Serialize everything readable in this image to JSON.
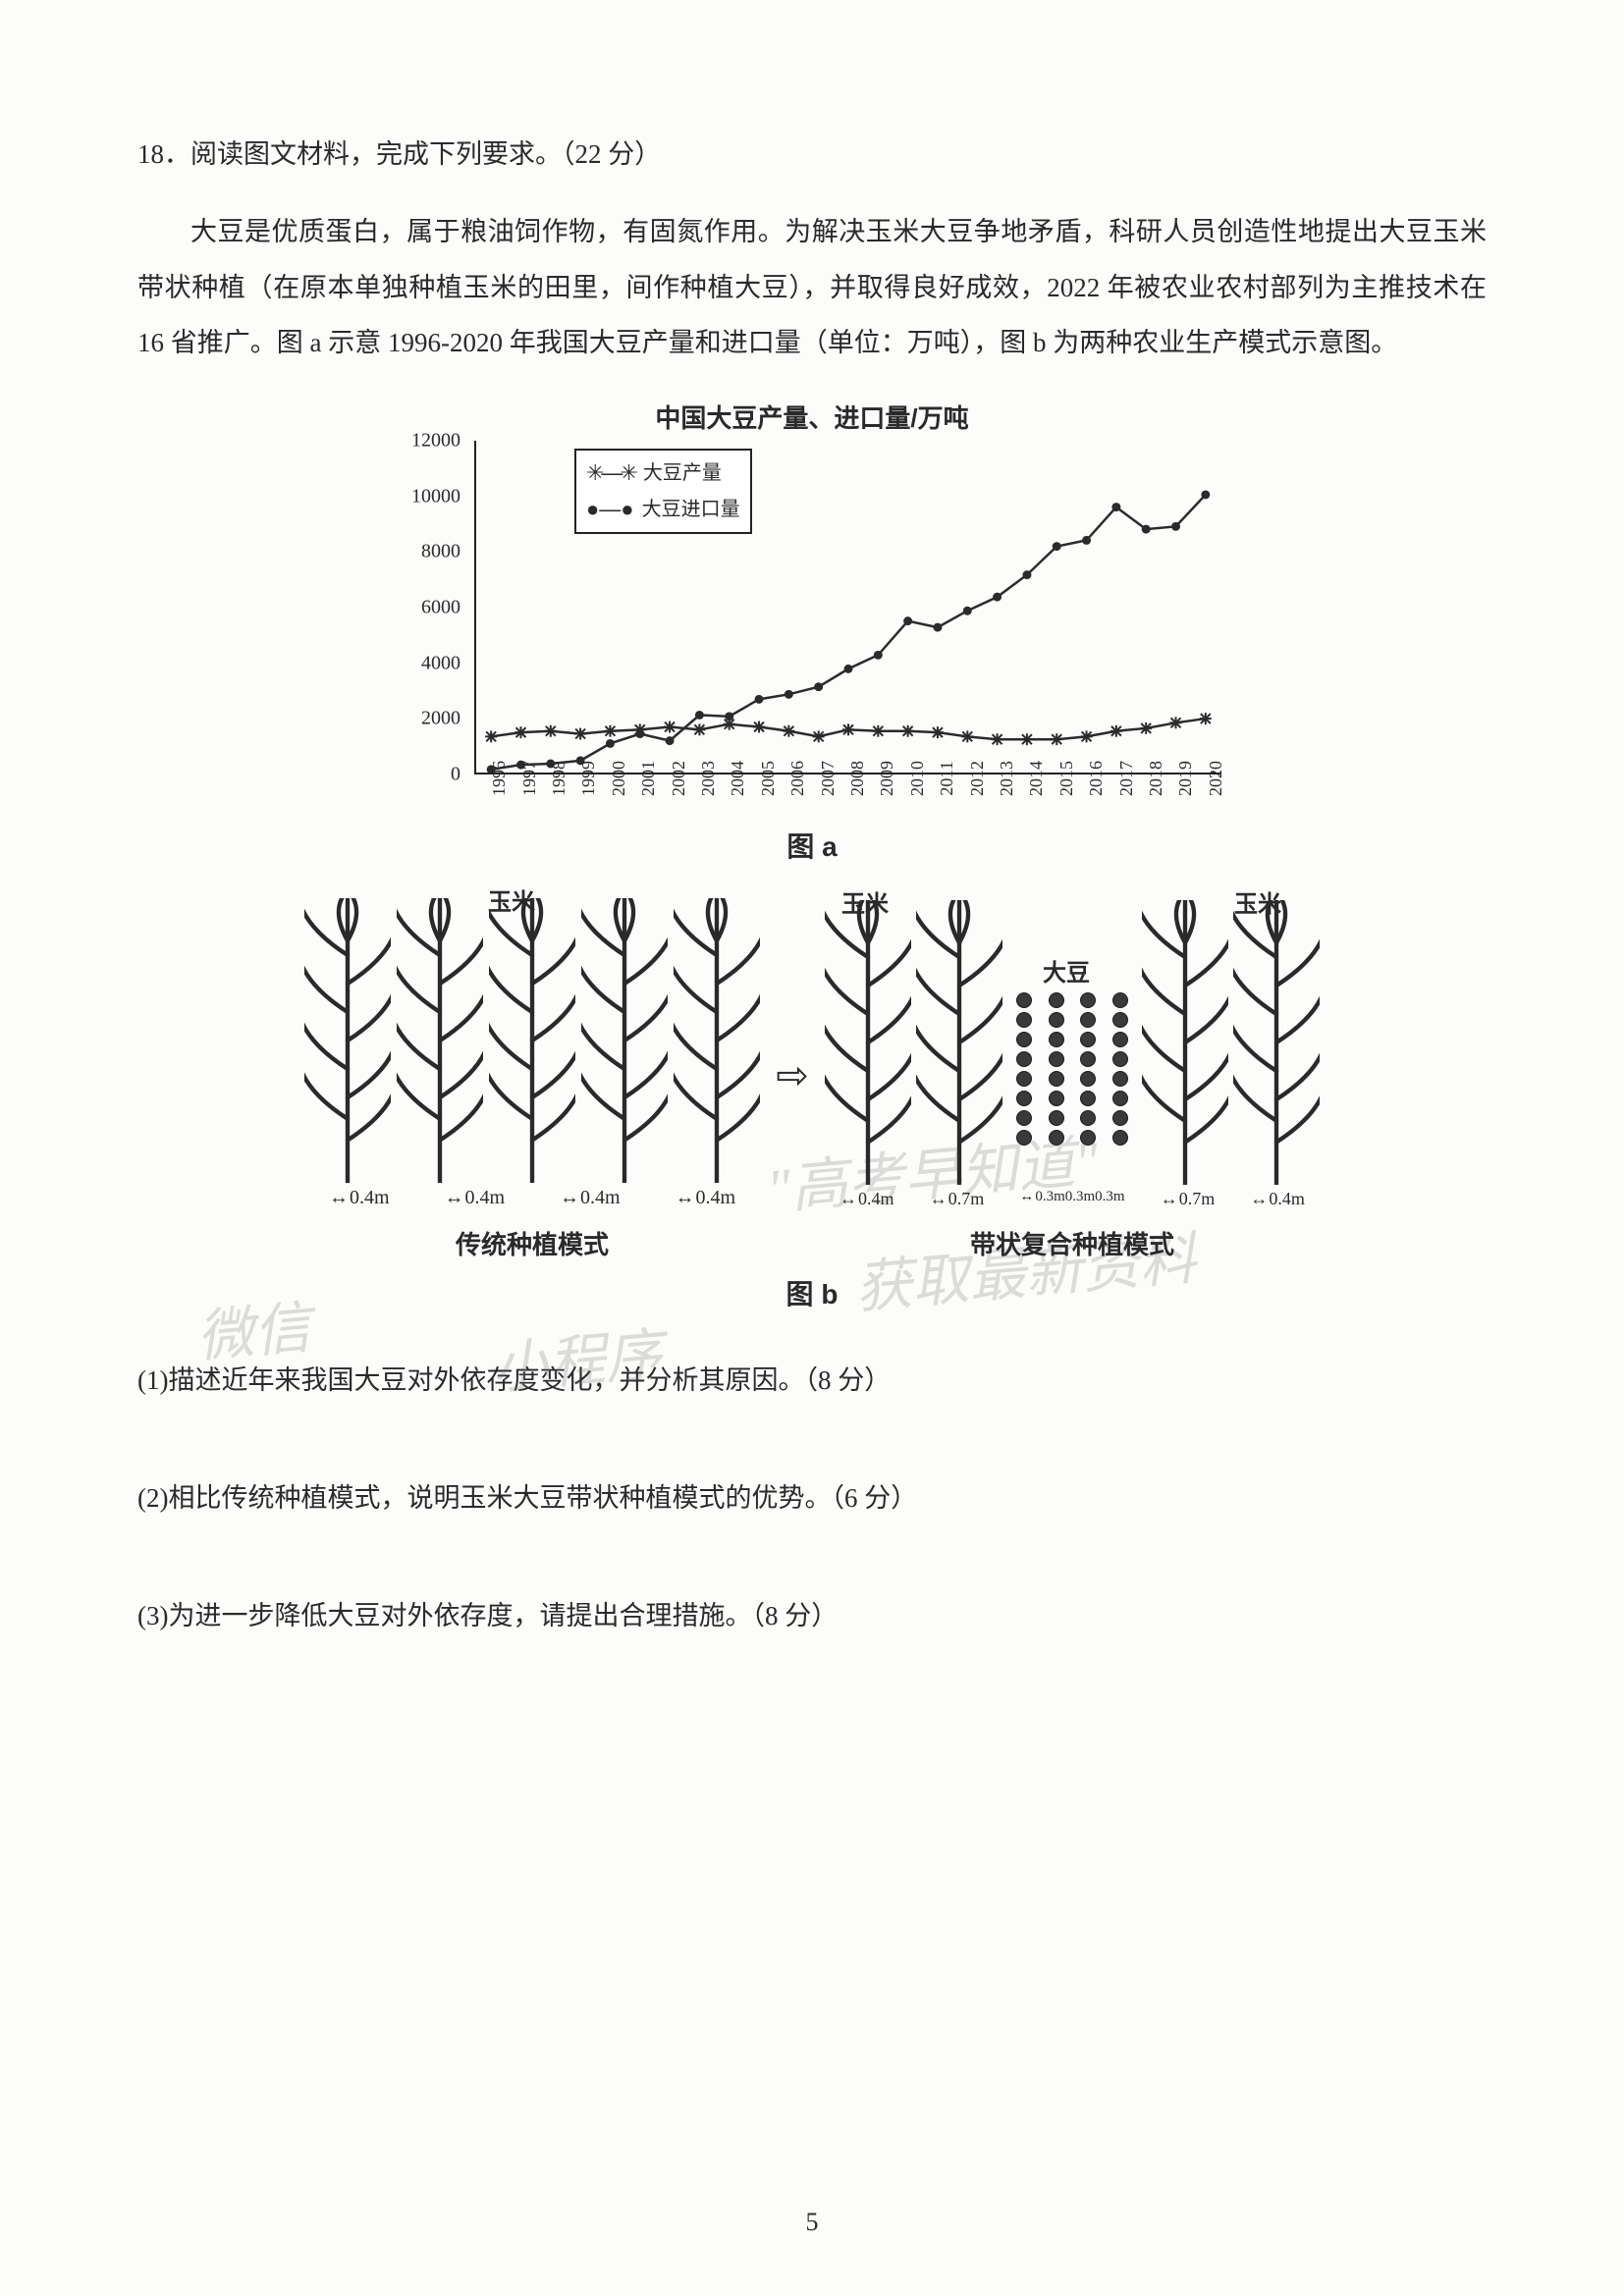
{
  "question_number": "18．",
  "question_header": "阅读图文材料，完成下列要求。（22 分）",
  "passage": "大豆是优质蛋白，属于粮油饲作物，有固氮作用。为解决玉米大豆争地矛盾，科研人员创造性地提出大豆玉米带状种植（在原本单独种植玉米的田里，间作种植大豆），并取得良好成效，2022 年被农业农村部列为主推技术在 16 省推广。图 a 示意 1996-2020 年我国大豆产量和进口量（单位：万吨），图 b 为两种农业生产模式示意图。",
  "chart": {
    "type": "line",
    "title": "中国大豆产量、进口量/万吨",
    "ylim": [
      0,
      12000
    ],
    "ytick_step": 2000,
    "years": [
      1996,
      1997,
      1998,
      1999,
      2000,
      2001,
      2002,
      2003,
      2004,
      2005,
      2006,
      2007,
      2008,
      2009,
      2010,
      2011,
      2012,
      2013,
      2014,
      2015,
      2016,
      2017,
      2018,
      2019,
      2020
    ],
    "series_production": {
      "label": "大豆产量",
      "marker": "x",
      "color": "#2b2b2b",
      "values": [
        1300,
        1450,
        1500,
        1400,
        1500,
        1550,
        1650,
        1550,
        1750,
        1650,
        1500,
        1300,
        1550,
        1500,
        1500,
        1450,
        1300,
        1200,
        1200,
        1200,
        1300,
        1500,
        1600,
        1800,
        1950
      ]
    },
    "series_import": {
      "label": "大豆进口量",
      "marker": "dot",
      "color": "#2b2b2b",
      "values": [
        110,
        280,
        320,
        430,
        1050,
        1400,
        1150,
        2080,
        2030,
        2650,
        2830,
        3100,
        3750,
        4250,
        5480,
        5250,
        5850,
        6350,
        7150,
        8180,
        8400,
        9600,
        8800,
        8900,
        10050
      ]
    },
    "background_color": "#fcfcfa",
    "axis_color": "#222222",
    "grid_on": false
  },
  "fig_a_label": "图 a",
  "fig_b": {
    "left_caption": "传统种植模式",
    "right_caption": "带状复合种植模式",
    "corn_label": "玉米",
    "soy_label": "大豆",
    "left_spacing": [
      "0.4m",
      "0.4m",
      "0.4m",
      "0.4m"
    ],
    "right_spacing_outer": "0.4m",
    "right_spacing_mid": "0.7m",
    "right_spacing_inner": "0.3m0.3m0.3m"
  },
  "fig_b_label": "图 b",
  "subquestions": {
    "q1": "(1)描述近年来我国大豆对外依存度变化，并分析其原因。（8 分）",
    "q2": "(2)相比传统种植模式，说明玉米大豆带状种植模式的优势。（6 分）",
    "q3": "(3)为进一步降低大豆对外依存度，请提出合理措施。（8 分）"
  },
  "page_number": "5",
  "watermark": {
    "w1": "\"高考早知道\"",
    "w2": "获取最新资料",
    "w3": "微信",
    "w4": "小程序"
  }
}
